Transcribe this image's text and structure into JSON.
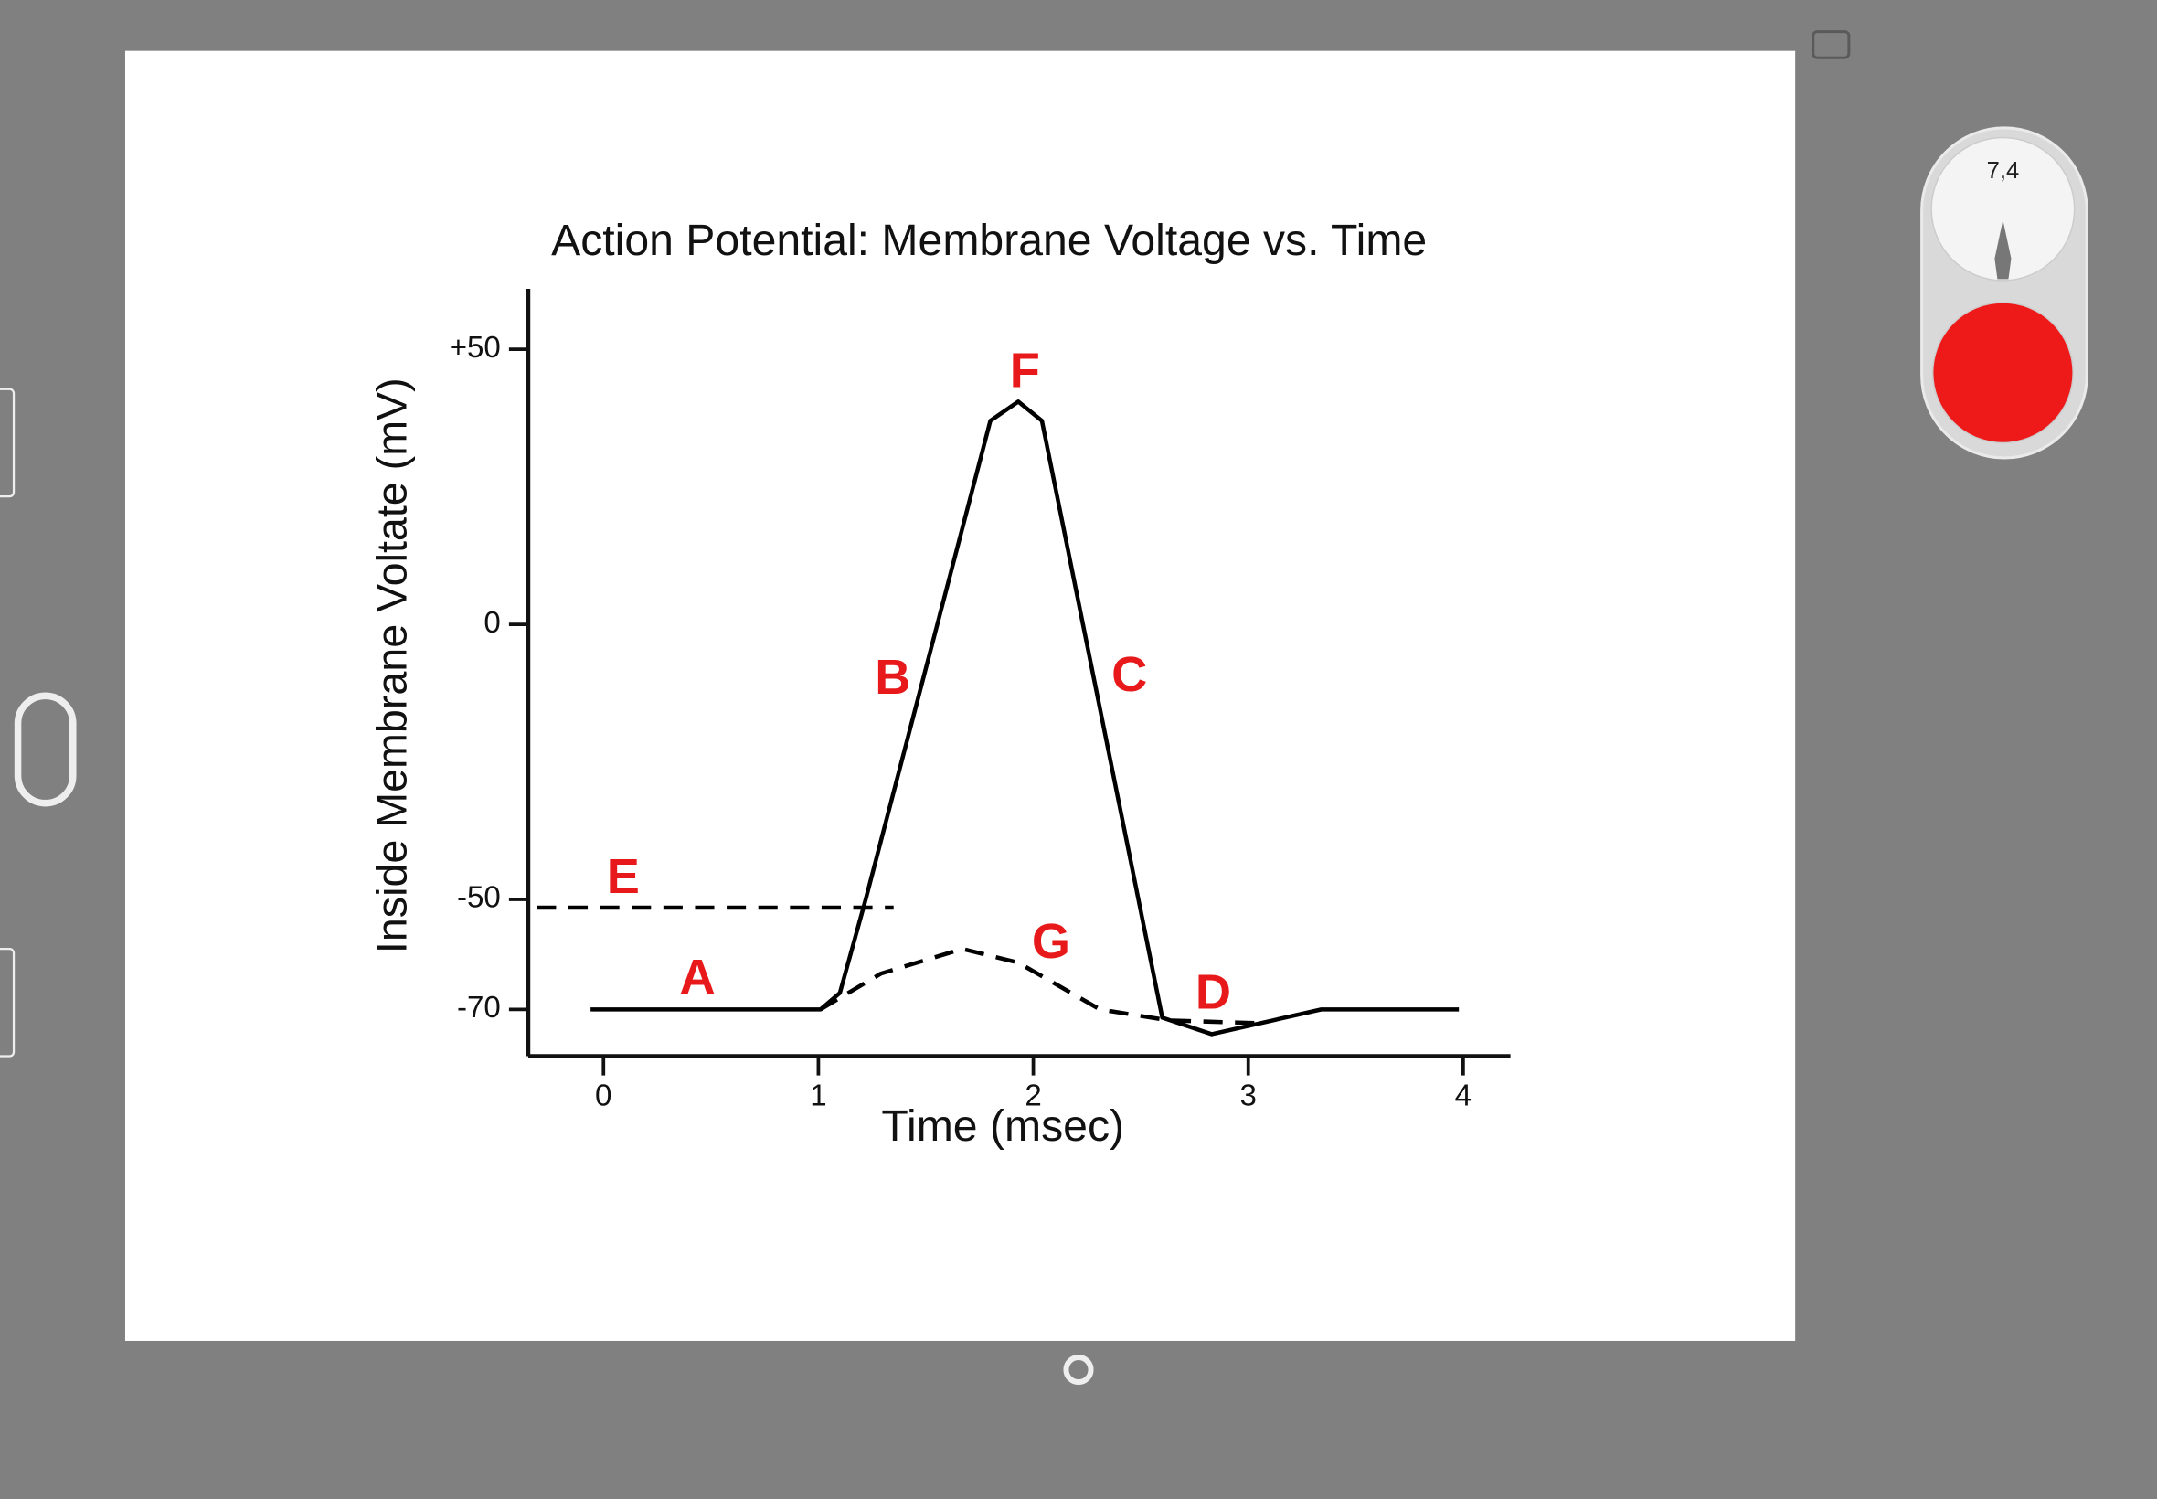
{
  "toolbar": {
    "pen_size": "7,4"
  },
  "chart_data": {
    "type": "line",
    "title": "Action Potential: Membrane Voltage vs. Time",
    "x_label": "Time (msec)",
    "y_label": "Inside Membrane Voltate (mV)",
    "xlim": [
      -0.35,
      4.22
    ],
    "ylim": [
      -78.5,
      61
    ],
    "xticks": [
      0,
      1,
      2,
      3,
      4
    ],
    "yticks": [
      {
        "value": 50,
        "label": "+50"
      },
      0,
      -50,
      -70
    ],
    "series": [
      {
        "color": "#000000",
        "dashed": false,
        "x": [
          -0.06,
          1.01,
          1.1,
          1.22,
          1.8,
          1.93,
          2.04,
          2.6,
          2.83,
          3.34,
          3.98
        ],
        "values": [
          -70,
          -70,
          -67,
          -50,
          37,
          40.5,
          37,
          -71.5,
          -74.5,
          -70,
          -70
        ]
      },
      {
        "color": "#000000",
        "dashed": true,
        "x": [
          -0.31,
          1.35
        ],
        "values": [
          -51.5,
          -51.5
        ]
      },
      {
        "color": "#000000",
        "dashed": true,
        "x": [
          1.01,
          1.29,
          1.67,
          1.93,
          2.31,
          2.63,
          3.05
        ],
        "values": [
          -70,
          -63.5,
          -59,
          -61.5,
          -70,
          -72,
          -72.5
        ]
      }
    ],
    "annotations": [
      "E",
      "A",
      "F",
      "B",
      "C",
      "G",
      "D"
    ]
  }
}
